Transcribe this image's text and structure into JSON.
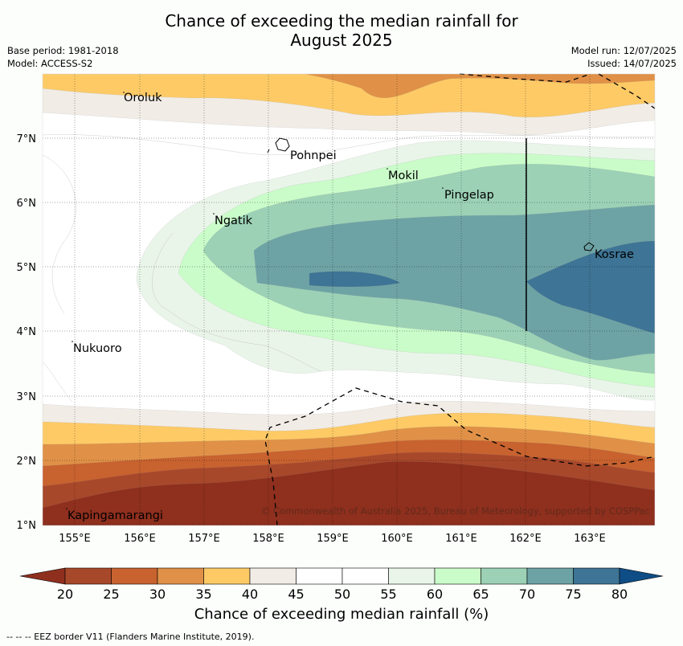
{
  "title": {
    "line1": "Chance of exceeding the median rainfall for",
    "line2": "August 2025"
  },
  "meta": {
    "base_period": "Base period: 1981-2018",
    "model": "Model: ACCESS-S2",
    "model_run": "Model run: 12/07/2025",
    "issued": "Issued: 14/07/2025"
  },
  "map": {
    "lon_labels": [
      "155°E",
      "156°E",
      "157°E",
      "158°E",
      "159°E",
      "160°E",
      "161°E",
      "162°E",
      "163°E"
    ],
    "lat_labels": [
      "7°N",
      "6°N",
      "5°N",
      "4°N",
      "3°N",
      "2°N",
      "1°N"
    ],
    "places": [
      "Oroluk",
      "Pohnpei",
      "Mokil",
      "Pingelap",
      "Ngatik",
      "Kosrae",
      "Nukuoro",
      "Kapingamarangi"
    ],
    "copyright": "© Commonwealth of Australia 2025, Bureau of Meteorology, supported by COSPPac"
  },
  "colorbar": {
    "ticks": [
      "20",
      "25",
      "30",
      "35",
      "40",
      "45",
      "50",
      "55",
      "60",
      "65",
      "70",
      "75",
      "80"
    ],
    "colors": {
      "below20": "#8f2f1e",
      "b20_25": "#a8482a",
      "b25_30": "#c8622f",
      "b30_35": "#e09147",
      "b35_40": "#fdca66",
      "b40_45": "#f1ece6",
      "b45_50": "#ffffff",
      "b50_55": "#ffffff",
      "b55_60": "#eaf5ea",
      "b60_65": "#cafcc9",
      "b65_70": "#9cd1b6",
      "b70_75": "#6ea3a5",
      "b75_80": "#3e7495",
      "above80": "#0e4d85"
    },
    "label": "Chance of exceeding median rainfall (%)"
  },
  "footnote": "--  --  -- EEZ border V11 (Flanders Marine Institute, 2019)."
}
